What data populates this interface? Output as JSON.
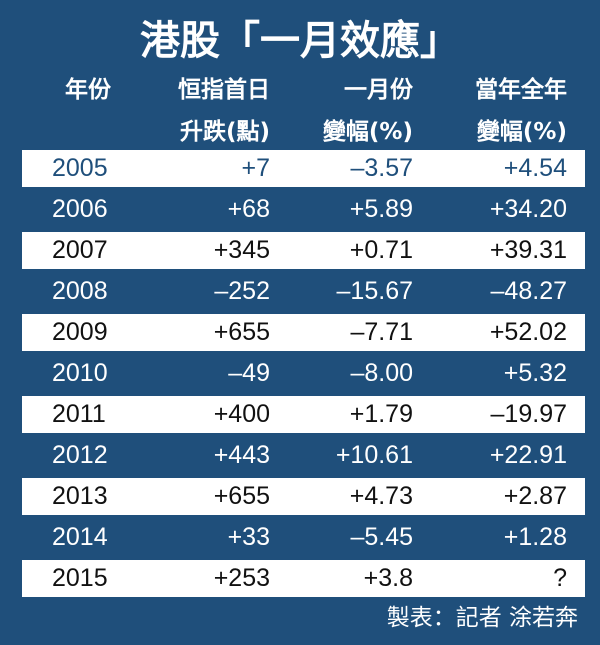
{
  "header": {
    "title": "港股「一月效應」",
    "columns": [
      [
        "年份"
      ],
      [
        "恒指首日",
        "升跌(點)"
      ],
      [
        "一月份",
        "變幅(%)"
      ],
      [
        "當年全年",
        "變幅(%)"
      ]
    ]
  },
  "table": {
    "rows": [
      [
        "2005",
        "+7",
        "–3.57",
        "+4.54"
      ],
      [
        "2006",
        "+68",
        "+5.89",
        "+34.20"
      ],
      [
        "2007",
        "+345",
        "+0.71",
        "+39.31"
      ],
      [
        "2008",
        "–252",
        "–15.67",
        "–48.27"
      ],
      [
        "2009",
        "+655",
        "–7.71",
        "+52.02"
      ],
      [
        "2010",
        "–49",
        "–8.00",
        "+5.32"
      ],
      [
        "2011",
        "+400",
        "+1.79",
        "–19.97"
      ],
      [
        "2012",
        "+443",
        "+10.61",
        "+22.91"
      ],
      [
        "2013",
        "+655",
        "+4.73",
        "+2.87"
      ],
      [
        "2014",
        "+33",
        "–5.45",
        "+1.28"
      ],
      [
        "2015",
        "+253",
        "+3.8",
        "?"
      ]
    ]
  },
  "footer": "製表：記者 涂若奔"
}
